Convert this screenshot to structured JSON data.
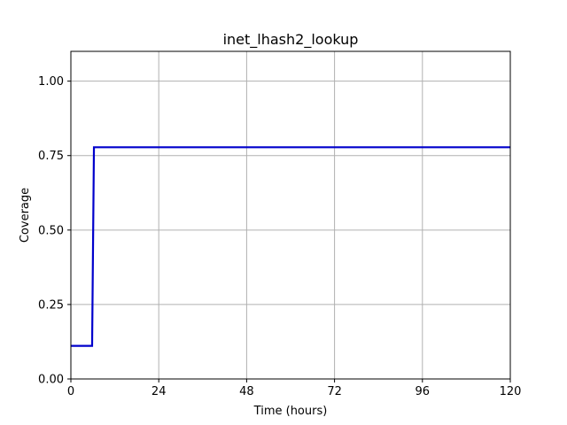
{
  "chart_data": {
    "type": "line",
    "title": "inet_lhash2_lookup",
    "xlabel": "Time (hours)",
    "ylabel": "Coverage",
    "xlim": [
      0,
      120
    ],
    "ylim": [
      0,
      1.1
    ],
    "xticks": [
      0,
      24,
      48,
      72,
      96,
      120
    ],
    "xtick_labels": [
      "0",
      "24",
      "48",
      "72",
      "96",
      "120"
    ],
    "yticks": [
      0,
      0.25,
      0.5,
      0.75,
      1.0
    ],
    "ytick_labels": [
      "0.00",
      "0.25",
      "0.50",
      "0.75",
      "1.00"
    ],
    "grid": true,
    "legend": "none",
    "series": [
      {
        "color": "#0000cc",
        "step": true,
        "x": [
          0,
          5.8,
          6.3,
          120
        ],
        "y": [
          0.111,
          0.111,
          0.778,
          0.778
        ]
      }
    ]
  }
}
